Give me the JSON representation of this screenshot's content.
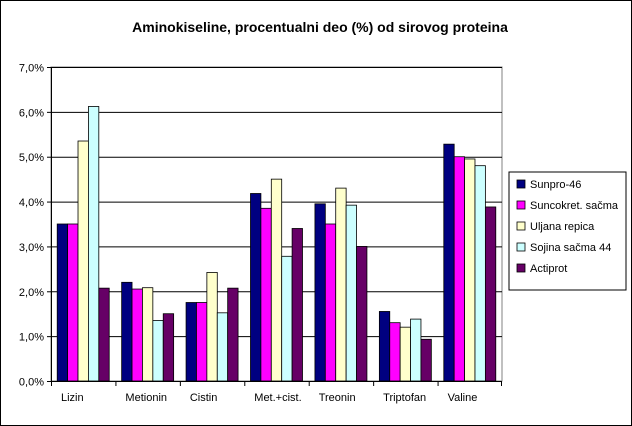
{
  "chart_data": {
    "type": "bar",
    "title": "Aminokiseline, procentualni deo (%) od sirovog proteina",
    "xlabel": "",
    "ylabel": "",
    "ylim": [
      0,
      7
    ],
    "yticks": [
      "0,0%",
      "1,0%",
      "2,0%",
      "3,0%",
      "4,0%",
      "5,0%",
      "6,0%",
      "7,0%"
    ],
    "grid": true,
    "legend": "right",
    "categories": [
      "Lizin",
      "Metionin",
      "Cistin",
      "Met.+cist.",
      "Treonin",
      "Triptofan",
      "Valine"
    ],
    "series": [
      {
        "name": "Sunpro-46",
        "color": "#000080",
        "values": [
          3.5,
          2.2,
          1.75,
          4.18,
          3.95,
          1.55,
          5.28
        ]
      },
      {
        "name": "Suncokret. sačma",
        "color": "#FF00FF",
        "values": [
          3.5,
          2.05,
          1.75,
          3.85,
          3.5,
          1.3,
          5.0
        ]
      },
      {
        "name": "Uljana repica",
        "color": "#FFFFCC",
        "values": [
          5.35,
          2.08,
          2.42,
          4.5,
          4.3,
          1.2,
          4.95
        ]
      },
      {
        "name": "Sojina sačma 44",
        "color": "#CCFFFF",
        "values": [
          6.12,
          1.35,
          1.52,
          2.78,
          3.92,
          1.38,
          4.8
        ]
      },
      {
        "name": "Actiprot",
        "color": "#660066",
        "values": [
          2.07,
          1.5,
          2.07,
          3.4,
          3.0,
          0.93,
          3.88
        ]
      }
    ]
  }
}
